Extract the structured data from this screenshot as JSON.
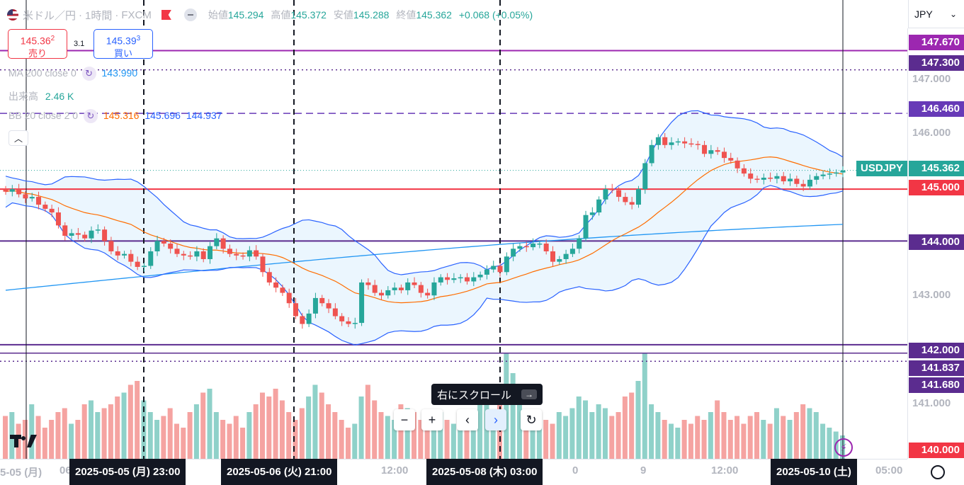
{
  "header": {
    "flag_icon": "us-flag-icon",
    "symbol_title": "米ドル／円",
    "interval": "1時間",
    "exchange": "FXCM",
    "open_label": "始値",
    "open_value": "145.294",
    "high_label": "高値",
    "high_value": "145.372",
    "low_label": "安値",
    "low_value": "145.288",
    "close_label": "終値",
    "close_value": "145.362",
    "change": "+0.068 (+0.05%)",
    "currency_select": "JPY"
  },
  "trade": {
    "sell_price_main": "145.36",
    "sell_price_sup": "2",
    "sell_label": "売り",
    "spread": "3.1",
    "buy_price_main": "145.39",
    "buy_price_sup": "3",
    "buy_label": "買い"
  },
  "indicators": {
    "ma_label": "MA 200 close 0",
    "ma_value": "143.990",
    "volume_label": "出来高",
    "volume_value": "2.46 K",
    "bb_label": "BB 20 close 2 0",
    "bb_basis": "145.316",
    "bb_upper": "145.696",
    "bb_lower": "144.937"
  },
  "price_axis": {
    "ticks": [
      "147.000",
      "146.000",
      "143.000",
      "141.000"
    ],
    "levels": [
      {
        "label": "147.670",
        "color": "#9c27b0"
      },
      {
        "label": "147.300",
        "color": "#5b2c8f"
      },
      {
        "label": "146.460",
        "color": "#673ab7"
      },
      {
        "label": "145.000",
        "color": "#f23645"
      },
      {
        "label": "144.000",
        "color": "#5b2c8f"
      },
      {
        "label": "142.000",
        "color": "#5b2c8f"
      },
      {
        "label": "141.837",
        "color": "#5b2c8f"
      },
      {
        "label": "141.680",
        "color": "#5b2c8f"
      },
      {
        "label": "140.000",
        "color": "#f23645"
      }
    ],
    "current_symbol": "USDJPY",
    "current_price": "145.362",
    "current_color": "#26a69a"
  },
  "time_axis": {
    "ticks": [
      "5-05 (月)",
      "06",
      "12:00",
      "0",
      "9",
      "12:00",
      "05:00"
    ],
    "labels": [
      "2025-05-05 (月)   23:00",
      "2025-05-06 (火)   21:00",
      "2025-05-08 (木)   03:00",
      "2025-05-10 (土)"
    ]
  },
  "navigation": {
    "tooltip": "右にスクロール",
    "tooltip_key": "→",
    "zoom_out": "−",
    "zoom_in": "+",
    "scroll_left": "‹",
    "scroll_right": "›",
    "reset": "↻"
  },
  "colors": {
    "up": "#26a69a",
    "down": "#ef5350",
    "ma200": "#2196f3",
    "bb_basis": "#ff6d00",
    "bb_band": "#2962ff",
    "band_fill": "#e3f2fd"
  },
  "chart_data": {
    "type": "candlestick",
    "symbol": "USDJPY",
    "price_range": [
      140.0,
      147.8
    ],
    "levels": [
      147.67,
      147.3,
      146.46,
      145.0,
      144.0,
      142.0,
      141.837,
      141.68
    ],
    "closes": [
      144.95,
      145.0,
      144.9,
      144.82,
      144.85,
      144.7,
      144.62,
      144.55,
      144.3,
      144.1,
      144.15,
      144.12,
      144.05,
      144.2,
      144.22,
      144.0,
      143.8,
      143.72,
      143.75,
      143.6,
      143.5,
      143.52,
      143.8,
      144.0,
      143.95,
      143.85,
      143.75,
      143.72,
      143.7,
      143.8,
      143.65,
      143.9,
      144.05,
      143.85,
      143.75,
      143.72,
      143.7,
      143.82,
      143.7,
      143.4,
      143.2,
      143.1,
      143.0,
      142.8,
      142.55,
      142.4,
      142.6,
      142.9,
      142.8,
      142.7,
      142.55,
      142.45,
      142.4,
      142.42,
      143.2,
      143.15,
      143.0,
      142.95,
      143.05,
      143.1,
      143.05,
      143.2,
      143.15,
      143.0,
      142.95,
      143.2,
      143.3,
      143.25,
      143.28,
      143.3,
      143.22,
      143.3,
      143.35,
      143.45,
      143.52,
      143.4,
      143.7,
      143.85,
      143.9,
      143.88,
      143.95,
      143.95,
      143.8,
      143.6,
      143.65,
      143.75,
      143.85,
      144.05,
      144.5,
      144.55,
      144.8,
      145.0,
      144.98,
      144.85,
      144.75,
      144.7,
      145.0,
      145.5,
      145.85,
      146.0,
      145.85,
      145.9,
      145.92,
      145.88,
      145.87,
      145.85,
      145.68,
      145.75,
      145.72,
      145.6,
      145.55,
      145.4,
      145.3,
      145.2,
      145.18,
      145.22,
      145.2,
      145.25,
      145.15,
      145.2,
      145.1,
      145.05,
      145.18,
      145.25,
      145.28,
      145.3,
      145.32,
      145.36
    ],
    "volume_relative": [
      0.55,
      0.6,
      0.45,
      0.5,
      0.7,
      0.55,
      0.4,
      0.5,
      0.6,
      0.65,
      0.45,
      0.5,
      0.7,
      0.75,
      0.6,
      0.65,
      0.7,
      0.8,
      0.85,
      0.95,
      1.0,
      0.75,
      0.6,
      0.5,
      0.55,
      0.65,
      0.45,
      0.4,
      0.6,
      0.7,
      0.85,
      0.9,
      0.6,
      0.5,
      0.45,
      0.55,
      0.4,
      0.6,
      0.7,
      0.85,
      0.8,
      0.9,
      0.75,
      0.6,
      0.5,
      0.65,
      0.8,
      0.95,
      0.85,
      0.7,
      0.6,
      0.5,
      0.4,
      0.45,
      0.8,
      0.95,
      0.75,
      0.6,
      0.55,
      0.5,
      0.7,
      0.65,
      0.6,
      0.5,
      0.45,
      0.55,
      0.6,
      0.5,
      0.45,
      0.55,
      0.6,
      0.5,
      0.7,
      0.85,
      0.6,
      0.75,
      1.35,
      1.1,
      0.8,
      0.55,
      0.45,
      0.4,
      0.5,
      0.45,
      0.6,
      0.55,
      0.65,
      0.8,
      0.75,
      0.6,
      0.7,
      0.65,
      0.55,
      0.6,
      0.8,
      0.85,
      1.0,
      1.35,
      0.7,
      0.6,
      0.5,
      0.45,
      0.4,
      0.5,
      0.45,
      0.55,
      0.5,
      0.6,
      0.75,
      0.6,
      0.5,
      0.55,
      0.45,
      0.55,
      0.6,
      0.5,
      0.45,
      0.65,
      0.55,
      0.5,
      0.6,
      0.7,
      0.65,
      0.6,
      0.45,
      0.4,
      0.35,
      0.3
    ]
  }
}
